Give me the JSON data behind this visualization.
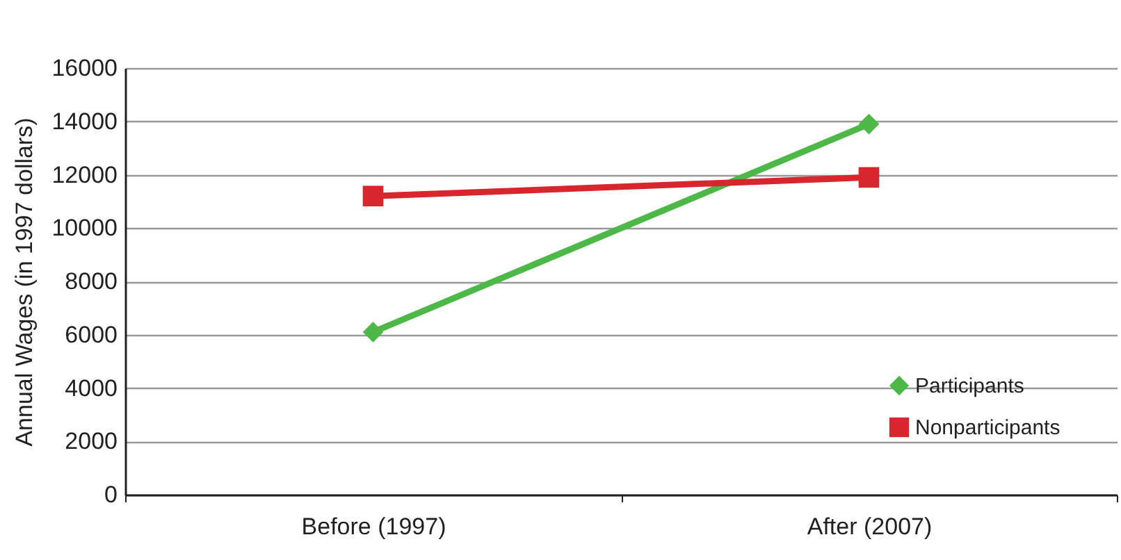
{
  "chart_data": {
    "type": "line",
    "ylabel": "Annual Wages (in 1997 dollars)",
    "categories": [
      "Before (1997)",
      "After (2007)"
    ],
    "series": [
      {
        "name": "Participants",
        "color": "#4db848",
        "values": [
          6100,
          13900
        ],
        "marker": "diamond"
      },
      {
        "name": "Nonparticipants",
        "color": "#d7262e",
        "values": [
          11200,
          11900
        ],
        "marker": "square"
      }
    ],
    "ylim": [
      0,
      16000
    ],
    "yticks": [
      0,
      2000,
      4000,
      6000,
      8000,
      10000,
      12000,
      14000,
      16000
    ],
    "grid": "y",
    "legend": "bottom right"
  }
}
